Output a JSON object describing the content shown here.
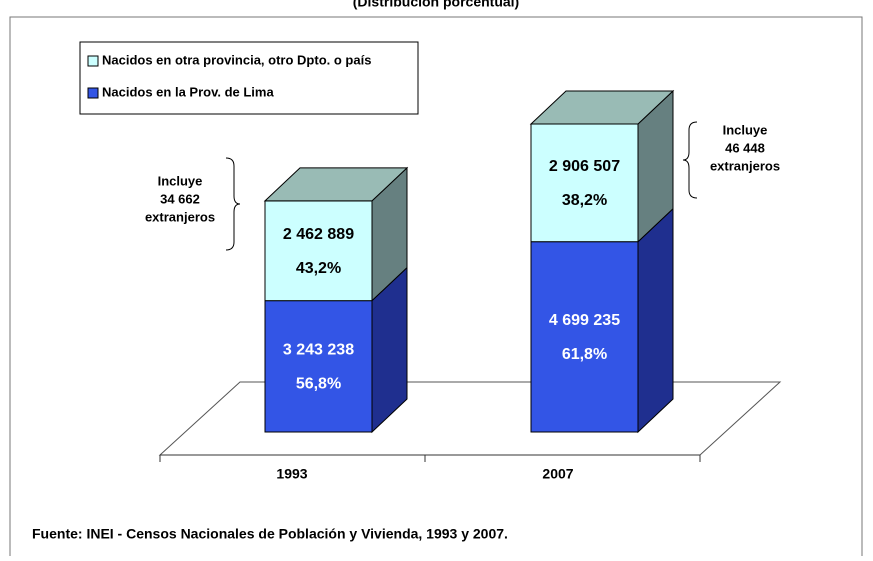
{
  "chart_data": {
    "type": "bar3d-stacked",
    "subtitle": "(Distribución porcentual)",
    "categories": [
      "1993",
      "2007"
    ],
    "series": [
      {
        "name": "Nacidos en la Prov. de Lima",
        "color": "#3355e6",
        "side_color": "#1f2f8f",
        "values": [
          3243238,
          4699235
        ],
        "value_labels": [
          "3 243 238",
          "4 699 235"
        ],
        "shares": [
          56.8,
          61.8
        ],
        "share_labels": [
          "56,8%",
          "61,8%"
        ]
      },
      {
        "name": "Nacidos en otra provincia, otro Dpto. o país",
        "color": "#ccffff",
        "side_color": "#668080",
        "top_color": "#99bbb5",
        "values": [
          2462889,
          2906507
        ],
        "value_labels": [
          "2 462 889",
          "2 906 507"
        ],
        "shares": [
          43.2,
          38.2
        ],
        "share_labels": [
          "43,2%",
          "38,2%"
        ]
      }
    ],
    "annotations": [
      {
        "lines": [
          "Incluye",
          "34 662",
          "extranjeros"
        ]
      },
      {
        "lines": [
          "Incluye",
          "46 448",
          "extranjeros"
        ]
      }
    ],
    "source": "Fuente: INEI - Censos Nacionales de Población y Vivienda, 1993 y 2007."
  }
}
